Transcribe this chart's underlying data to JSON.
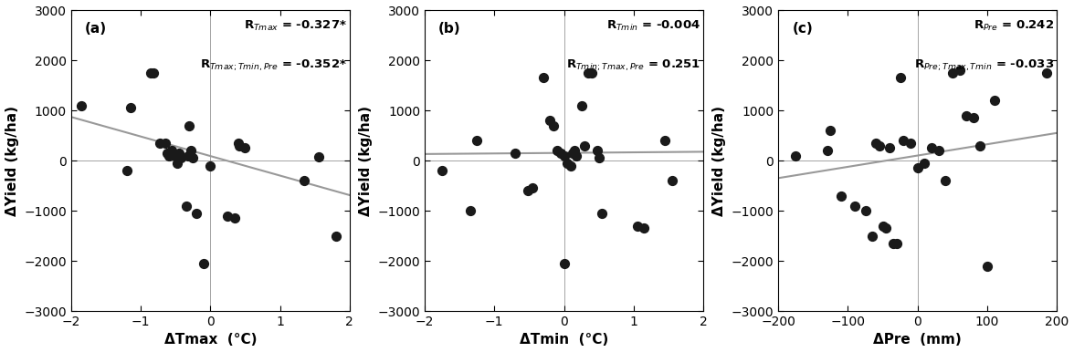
{
  "panel_a": {
    "label": "(a)",
    "xlabel": "ΔTmax  (°C)",
    "ylabel": "ΔYield (kg/ha)",
    "xlim": [
      -2,
      2
    ],
    "ylim": [
      -3000,
      3000
    ],
    "xticks": [
      -2,
      -1,
      0,
      1,
      2
    ],
    "yticks": [
      -3000,
      -2000,
      -1000,
      0,
      1000,
      2000,
      3000
    ],
    "R_simple_sub": "Tmax",
    "R_simple_val": "= -0.327*",
    "R_partial_sub": "Tmax;Tmin,Pre",
    "R_partial_val": "= -0.352*",
    "x": [
      -1.85,
      -1.2,
      -1.15,
      -0.85,
      -0.82,
      -0.72,
      -0.65,
      -0.62,
      -0.6,
      -0.55,
      -0.5,
      -0.48,
      -0.45,
      -0.42,
      -0.35,
      -0.32,
      -0.3,
      -0.28,
      -0.25,
      -0.2,
      -0.1,
      0.0,
      0.25,
      0.35,
      0.4,
      0.42,
      0.5,
      1.35,
      1.55,
      1.8
    ],
    "y": [
      1100,
      -200,
      1050,
      1750,
      1750,
      350,
      350,
      150,
      100,
      200,
      100,
      -50,
      150,
      50,
      -900,
      100,
      700,
      200,
      50,
      -1050,
      -2050,
      -100,
      -1100,
      -1150,
      350,
      300,
      250,
      -400,
      75,
      -1500
    ],
    "trendline_x": [
      -2,
      2
    ],
    "trendline_y": [
      870,
      -690
    ]
  },
  "panel_b": {
    "label": "(b)",
    "xlabel": "ΔTmin  (°C)",
    "ylabel": "ΔYield (kg/ha)",
    "xlim": [
      -2,
      2
    ],
    "ylim": [
      -3000,
      3000
    ],
    "xticks": [
      -2,
      -1,
      0,
      1,
      2
    ],
    "yticks": [
      -3000,
      -2000,
      -1000,
      0,
      1000,
      2000,
      3000
    ],
    "R_simple_sub": "Tmin",
    "R_simple_val": "= -0.004",
    "R_partial_sub": "Tmin;Tmax,Pre",
    "R_partial_val": "= 0.251",
    "x": [
      -1.75,
      -1.35,
      -1.25,
      -0.7,
      -0.52,
      -0.45,
      -0.3,
      -0.2,
      -0.15,
      -0.1,
      -0.05,
      0.0,
      0.0,
      0.05,
      0.1,
      0.12,
      0.15,
      0.18,
      0.25,
      0.3,
      0.35,
      0.4,
      0.48,
      0.5,
      0.55,
      1.05,
      1.15,
      1.45,
      1.55
    ],
    "y": [
      -200,
      -1000,
      400,
      150,
      -600,
      -550,
      1650,
      800,
      700,
      200,
      150,
      100,
      -2050,
      -50,
      -100,
      150,
      200,
      100,
      1100,
      300,
      1750,
      1750,
      200,
      50,
      -1050,
      -1300,
      -1350,
      400,
      -400
    ],
    "trendline_x": [
      -2,
      2
    ],
    "trendline_y": [
      130,
      175
    ]
  },
  "panel_c": {
    "label": "(c)",
    "xlabel": "ΔPre  (mm)",
    "ylabel": "ΔYield (kg/ha)",
    "xlim": [
      -200,
      200
    ],
    "ylim": [
      -3000,
      3000
    ],
    "xticks": [
      -200,
      -100,
      0,
      100,
      200
    ],
    "yticks": [
      -3000,
      -2000,
      -1000,
      0,
      1000,
      2000,
      3000
    ],
    "R_simple_sub": "Pre",
    "R_simple_val": "= 0.242",
    "R_partial_sub": "Pre;Tmax,Tmin",
    "R_partial_val": "= -0.033",
    "x": [
      -175,
      -130,
      -125,
      -110,
      -90,
      -75,
      -65,
      -60,
      -55,
      -50,
      -45,
      -40,
      -35,
      -30,
      -25,
      -20,
      -10,
      0,
      10,
      20,
      30,
      40,
      50,
      60,
      70,
      80,
      90,
      100,
      110,
      185
    ],
    "y": [
      100,
      200,
      600,
      -700,
      -900,
      -1000,
      -1500,
      350,
      300,
      -1300,
      -1350,
      250,
      -1650,
      -1650,
      1650,
      400,
      350,
      -150,
      -50,
      250,
      200,
      -400,
      1750,
      1800,
      900,
      850,
      300,
      -2100,
      1200,
      1750
    ],
    "trendline_x": [
      -200,
      200
    ],
    "trendline_y": [
      -350,
      550
    ]
  },
  "figure_bg": "#ffffff",
  "axes_bg": "#ffffff",
  "scatter_color": "#1a1a1a",
  "scatter_size": 50,
  "line_color": "#999999",
  "line_width": 1.5,
  "font_size_label": 11,
  "font_size_tick": 10,
  "font_size_annot": 9.5,
  "font_size_panel": 11
}
